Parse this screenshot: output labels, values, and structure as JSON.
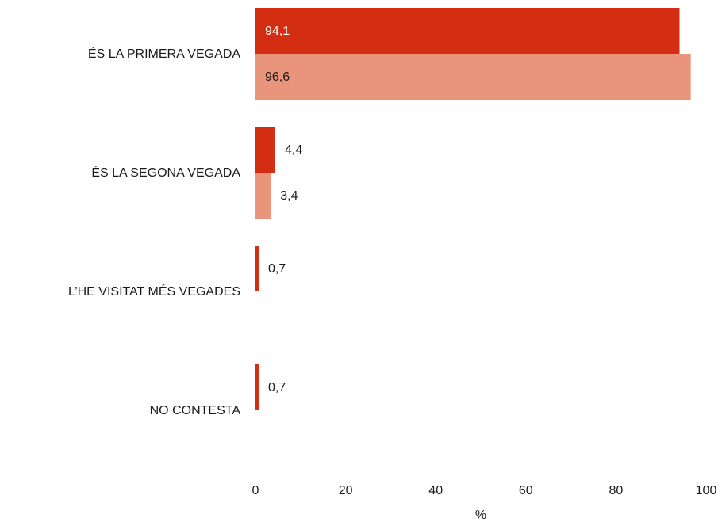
{
  "chart_data": {
    "type": "bar",
    "orientation": "horizontal",
    "categories": [
      "ÉS LA PRIMERA VEGADA",
      "ÉS LA SEGONA VEGADA",
      "L’HE VISITAT MÉS VEGADES",
      "NO CONTESTA"
    ],
    "series": [
      {
        "color": "#d42e12",
        "values": [
          94.1,
          4.4,
          0.7,
          0.7
        ],
        "value_labels": [
          "94,1",
          "4,4",
          "0,7",
          "0,7"
        ]
      },
      {
        "color": "#e8957b",
        "values": [
          96.6,
          3.4,
          null,
          null
        ],
        "value_labels": [
          "96,6",
          "3,4",
          null,
          null
        ]
      }
    ],
    "xlabel": "%",
    "xlim": [
      0,
      100
    ],
    "xticks": [
      0,
      20,
      40,
      60,
      80,
      100
    ],
    "grid": false
  }
}
